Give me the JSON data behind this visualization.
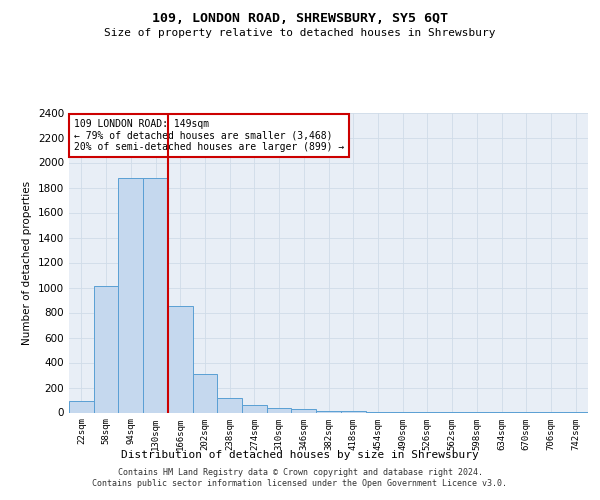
{
  "title": "109, LONDON ROAD, SHREWSBURY, SY5 6QT",
  "subtitle": "Size of property relative to detached houses in Shrewsbury",
  "xlabel": "Distribution of detached houses by size in Shrewsbury",
  "ylabel": "Number of detached properties",
  "footer_line1": "Contains HM Land Registry data © Crown copyright and database right 2024.",
  "footer_line2": "Contains public sector information licensed under the Open Government Licence v3.0.",
  "annotation_line1": "109 LONDON ROAD: 149sqm",
  "annotation_line2": "← 79% of detached houses are smaller (3,468)",
  "annotation_line3": "20% of semi-detached houses are larger (899) →",
  "bar_labels": [
    "22sqm",
    "58sqm",
    "94sqm",
    "130sqm",
    "166sqm",
    "202sqm",
    "238sqm",
    "274sqm",
    "310sqm",
    "346sqm",
    "382sqm",
    "418sqm",
    "454sqm",
    "490sqm",
    "526sqm",
    "562sqm",
    "598sqm",
    "634sqm",
    "670sqm",
    "706sqm",
    "742sqm"
  ],
  "bar_values": [
    90,
    1010,
    1880,
    1880,
    855,
    310,
    115,
    60,
    40,
    25,
    15,
    10,
    8,
    6,
    5,
    4,
    3,
    3,
    2,
    2,
    2
  ],
  "bar_color": "#c5d8ee",
  "bar_edgecolor": "#5a9fd4",
  "bar_width": 1.0,
  "red_line_x": 3.5,
  "ylim": [
    0,
    2400
  ],
  "yticks": [
    0,
    200,
    400,
    600,
    800,
    1000,
    1200,
    1400,
    1600,
    1800,
    2000,
    2200,
    2400
  ],
  "grid_color": "#d0dce8",
  "bg_axes": "#e8eef6",
  "annotation_box_edgecolor": "#cc0000",
  "red_line_color": "#cc0000"
}
